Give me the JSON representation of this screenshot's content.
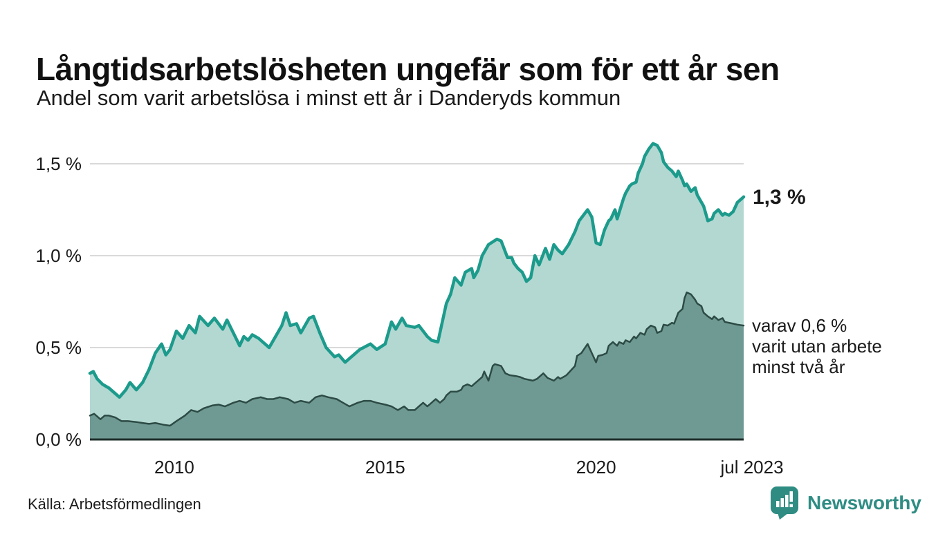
{
  "footer": {
    "source": "Källa: Arbetsförmedlingen",
    "logo_text": "Newsworthy"
  },
  "annotations": {
    "latest_value": "1,3 %",
    "secondary": "varav 0,6 %\nvarit utan arbete\nminst två år"
  },
  "colors": {
    "teal_line": "#1c9b8c",
    "light_fill": "#b3d8d2",
    "dark_line": "#2d4b45",
    "dark_fill": "#6f9a93",
    "gridline": "#d9d9d9",
    "baseline": "#1f2d2a",
    "text": "#1a1a1a",
    "brand_teal": "#2e8c83"
  },
  "chart_data": {
    "type": "area",
    "title": "Långtidsarbetslösheten ungefär som för ett år sen",
    "subtitle": "Andel som varit arbetslösa i minst ett år i Danderyds kommun",
    "grid": true,
    "legend": "none",
    "x_axis": {
      "xlim": [
        2008.0,
        2023.5
      ],
      "ticks": [
        {
          "label": "2010",
          "year": 2010,
          "dx": 0
        },
        {
          "label": "2015",
          "year": 2015,
          "dx": 0
        },
        {
          "label": "2020",
          "year": 2020,
          "dx": 0
        },
        {
          "label": "jul 2023",
          "year": 2023.5,
          "dx": 12
        }
      ]
    },
    "y_axis": {
      "unit": "%",
      "ylim": [
        0,
        1.65
      ],
      "ticks": [
        {
          "label": "0,0 %",
          "value": 0
        },
        {
          "label": "0,5 %",
          "value": 0.5
        },
        {
          "label": "1,0 %",
          "value": 1.0
        },
        {
          "label": "1,5 %",
          "value": 1.5
        }
      ]
    },
    "series": [
      {
        "name": "Arbetslösa minst ett år",
        "end_label": "1,3 %",
        "end_value": 1.3,
        "line_color": "#1c9b8c",
        "fill_color": "#b3d8d2",
        "line_width": 4.5,
        "points": [
          [
            2008.0,
            0.36
          ],
          [
            2008.08,
            0.37
          ],
          [
            2008.17,
            0.33
          ],
          [
            2008.3,
            0.3
          ],
          [
            2008.45,
            0.28
          ],
          [
            2008.6,
            0.25
          ],
          [
            2008.7,
            0.23
          ],
          [
            2008.85,
            0.27
          ],
          [
            2008.95,
            0.31
          ],
          [
            2009.1,
            0.27
          ],
          [
            2009.25,
            0.31
          ],
          [
            2009.4,
            0.38
          ],
          [
            2009.55,
            0.47
          ],
          [
            2009.7,
            0.52
          ],
          [
            2009.8,
            0.46
          ],
          [
            2009.9,
            0.49
          ],
          [
            2010.05,
            0.59
          ],
          [
            2010.2,
            0.55
          ],
          [
            2010.35,
            0.62
          ],
          [
            2010.5,
            0.58
          ],
          [
            2010.6,
            0.67
          ],
          [
            2010.8,
            0.62
          ],
          [
            2010.95,
            0.66
          ],
          [
            2011.15,
            0.6
          ],
          [
            2011.25,
            0.65
          ],
          [
            2011.4,
            0.58
          ],
          [
            2011.55,
            0.51
          ],
          [
            2011.65,
            0.56
          ],
          [
            2011.75,
            0.54
          ],
          [
            2011.85,
            0.57
          ],
          [
            2012.0,
            0.55
          ],
          [
            2012.15,
            0.52
          ],
          [
            2012.25,
            0.5
          ],
          [
            2012.4,
            0.56
          ],
          [
            2012.55,
            0.62
          ],
          [
            2012.65,
            0.69
          ],
          [
            2012.75,
            0.62
          ],
          [
            2012.9,
            0.63
          ],
          [
            2013.0,
            0.58
          ],
          [
            2013.2,
            0.66
          ],
          [
            2013.3,
            0.67
          ],
          [
            2013.45,
            0.58
          ],
          [
            2013.6,
            0.5
          ],
          [
            2013.8,
            0.45
          ],
          [
            2013.9,
            0.46
          ],
          [
            2014.05,
            0.42
          ],
          [
            2014.2,
            0.45
          ],
          [
            2014.4,
            0.49
          ],
          [
            2014.65,
            0.52
          ],
          [
            2014.8,
            0.49
          ],
          [
            2015.0,
            0.52
          ],
          [
            2015.15,
            0.64
          ],
          [
            2015.25,
            0.6
          ],
          [
            2015.4,
            0.66
          ],
          [
            2015.5,
            0.62
          ],
          [
            2015.7,
            0.61
          ],
          [
            2015.8,
            0.62
          ],
          [
            2016.0,
            0.56
          ],
          [
            2016.1,
            0.54
          ],
          [
            2016.25,
            0.53
          ],
          [
            2016.45,
            0.74
          ],
          [
            2016.55,
            0.79
          ],
          [
            2016.65,
            0.88
          ],
          [
            2016.8,
            0.84
          ],
          [
            2016.9,
            0.91
          ],
          [
            2017.05,
            0.93
          ],
          [
            2017.1,
            0.88
          ],
          [
            2017.2,
            0.92
          ],
          [
            2017.3,
            1.0
          ],
          [
            2017.45,
            1.06
          ],
          [
            2017.65,
            1.09
          ],
          [
            2017.75,
            1.08
          ],
          [
            2017.9,
            0.99
          ],
          [
            2018.0,
            0.99
          ],
          [
            2018.05,
            0.96
          ],
          [
            2018.15,
            0.93
          ],
          [
            2018.25,
            0.91
          ],
          [
            2018.35,
            0.86
          ],
          [
            2018.45,
            0.88
          ],
          [
            2018.55,
            1.0
          ],
          [
            2018.65,
            0.95
          ],
          [
            2018.7,
            0.98
          ],
          [
            2018.8,
            1.04
          ],
          [
            2018.9,
            0.98
          ],
          [
            2019.0,
            1.06
          ],
          [
            2019.1,
            1.03
          ],
          [
            2019.2,
            1.01
          ],
          [
            2019.35,
            1.06
          ],
          [
            2019.5,
            1.13
          ],
          [
            2019.6,
            1.19
          ],
          [
            2019.8,
            1.25
          ],
          [
            2019.9,
            1.21
          ],
          [
            2020.0,
            1.07
          ],
          [
            2020.1,
            1.06
          ],
          [
            2020.2,
            1.14
          ],
          [
            2020.3,
            1.19
          ],
          [
            2020.35,
            1.2
          ],
          [
            2020.45,
            1.25
          ],
          [
            2020.5,
            1.2
          ],
          [
            2020.65,
            1.31
          ],
          [
            2020.7,
            1.34
          ],
          [
            2020.8,
            1.38
          ],
          [
            2020.85,
            1.39
          ],
          [
            2020.95,
            1.4
          ],
          [
            2021.0,
            1.45
          ],
          [
            2021.1,
            1.5
          ],
          [
            2021.15,
            1.54
          ],
          [
            2021.25,
            1.58
          ],
          [
            2021.35,
            1.61
          ],
          [
            2021.45,
            1.6
          ],
          [
            2021.55,
            1.56
          ],
          [
            2021.6,
            1.51
          ],
          [
            2021.7,
            1.48
          ],
          [
            2021.8,
            1.46
          ],
          [
            2021.9,
            1.43
          ],
          [
            2021.95,
            1.46
          ],
          [
            2022.05,
            1.41
          ],
          [
            2022.1,
            1.38
          ],
          [
            2022.15,
            1.39
          ],
          [
            2022.25,
            1.35
          ],
          [
            2022.35,
            1.37
          ],
          [
            2022.4,
            1.33
          ],
          [
            2022.5,
            1.29
          ],
          [
            2022.55,
            1.27
          ],
          [
            2022.65,
            1.19
          ],
          [
            2022.75,
            1.2
          ],
          [
            2022.8,
            1.23
          ],
          [
            2022.9,
            1.25
          ],
          [
            2023.0,
            1.22
          ],
          [
            2023.05,
            1.23
          ],
          [
            2023.15,
            1.22
          ],
          [
            2023.25,
            1.24
          ],
          [
            2023.35,
            1.29
          ],
          [
            2023.5,
            1.32
          ]
        ]
      },
      {
        "name": "varav arbetslösa minst två år",
        "annotation": "varav 0,6 %\nvarit utan arbete\nminst två år",
        "end_value": 0.6,
        "line_color": "#2d4b45",
        "fill_color": "#6f9a93",
        "line_width": 2.5,
        "points": [
          [
            2008.0,
            0.13
          ],
          [
            2008.1,
            0.14
          ],
          [
            2008.25,
            0.11
          ],
          [
            2008.35,
            0.13
          ],
          [
            2008.45,
            0.13
          ],
          [
            2008.6,
            0.12
          ],
          [
            2008.75,
            0.1
          ],
          [
            2008.9,
            0.1
          ],
          [
            2009.1,
            0.095
          ],
          [
            2009.25,
            0.09
          ],
          [
            2009.4,
            0.085
          ],
          [
            2009.55,
            0.09
          ],
          [
            2009.75,
            0.08
          ],
          [
            2009.9,
            0.075
          ],
          [
            2010.05,
            0.1
          ],
          [
            2010.25,
            0.13
          ],
          [
            2010.4,
            0.16
          ],
          [
            2010.55,
            0.15
          ],
          [
            2010.7,
            0.17
          ],
          [
            2010.9,
            0.185
          ],
          [
            2011.05,
            0.19
          ],
          [
            2011.2,
            0.18
          ],
          [
            2011.4,
            0.2
          ],
          [
            2011.55,
            0.21
          ],
          [
            2011.7,
            0.2
          ],
          [
            2011.85,
            0.22
          ],
          [
            2012.05,
            0.23
          ],
          [
            2012.2,
            0.22
          ],
          [
            2012.35,
            0.22
          ],
          [
            2012.5,
            0.23
          ],
          [
            2012.7,
            0.22
          ],
          [
            2012.85,
            0.2
          ],
          [
            2013.0,
            0.21
          ],
          [
            2013.2,
            0.2
          ],
          [
            2013.35,
            0.23
          ],
          [
            2013.5,
            0.24
          ],
          [
            2013.65,
            0.23
          ],
          [
            2013.85,
            0.22
          ],
          [
            2014.0,
            0.2
          ],
          [
            2014.15,
            0.18
          ],
          [
            2014.35,
            0.2
          ],
          [
            2014.5,
            0.21
          ],
          [
            2014.65,
            0.21
          ],
          [
            2014.8,
            0.2
          ],
          [
            2015.0,
            0.19
          ],
          [
            2015.15,
            0.18
          ],
          [
            2015.3,
            0.16
          ],
          [
            2015.45,
            0.18
          ],
          [
            2015.55,
            0.16
          ],
          [
            2015.7,
            0.16
          ],
          [
            2015.8,
            0.18
          ],
          [
            2015.9,
            0.2
          ],
          [
            2016.0,
            0.18
          ],
          [
            2016.05,
            0.19
          ],
          [
            2016.15,
            0.21
          ],
          [
            2016.2,
            0.22
          ],
          [
            2016.3,
            0.2
          ],
          [
            2016.4,
            0.22
          ],
          [
            2016.45,
            0.24
          ],
          [
            2016.55,
            0.26
          ],
          [
            2016.7,
            0.26
          ],
          [
            2016.8,
            0.27
          ],
          [
            2016.85,
            0.29
          ],
          [
            2016.95,
            0.3
          ],
          [
            2017.05,
            0.29
          ],
          [
            2017.1,
            0.3
          ],
          [
            2017.2,
            0.32
          ],
          [
            2017.3,
            0.34
          ],
          [
            2017.35,
            0.37
          ],
          [
            2017.45,
            0.32
          ],
          [
            2017.55,
            0.4
          ],
          [
            2017.6,
            0.41
          ],
          [
            2017.75,
            0.4
          ],
          [
            2017.85,
            0.36
          ],
          [
            2017.95,
            0.35
          ],
          [
            2018.1,
            0.345
          ],
          [
            2018.2,
            0.34
          ],
          [
            2018.3,
            0.33
          ],
          [
            2018.4,
            0.325
          ],
          [
            2018.5,
            0.32
          ],
          [
            2018.6,
            0.33
          ],
          [
            2018.65,
            0.34
          ],
          [
            2018.75,
            0.36
          ],
          [
            2018.85,
            0.335
          ],
          [
            2019.0,
            0.32
          ],
          [
            2019.1,
            0.34
          ],
          [
            2019.15,
            0.33
          ],
          [
            2019.3,
            0.35
          ],
          [
            2019.5,
            0.4
          ],
          [
            2019.55,
            0.455
          ],
          [
            2019.65,
            0.47
          ],
          [
            2019.8,
            0.52
          ],
          [
            2019.9,
            0.47
          ],
          [
            2020.0,
            0.42
          ],
          [
            2020.05,
            0.455
          ],
          [
            2020.15,
            0.46
          ],
          [
            2020.25,
            0.47
          ],
          [
            2020.3,
            0.51
          ],
          [
            2020.4,
            0.53
          ],
          [
            2020.5,
            0.51
          ],
          [
            2020.55,
            0.53
          ],
          [
            2020.65,
            0.52
          ],
          [
            2020.7,
            0.54
          ],
          [
            2020.8,
            0.53
          ],
          [
            2020.9,
            0.56
          ],
          [
            2020.95,
            0.55
          ],
          [
            2021.05,
            0.58
          ],
          [
            2021.15,
            0.57
          ],
          [
            2021.2,
            0.6
          ],
          [
            2021.3,
            0.62
          ],
          [
            2021.4,
            0.61
          ],
          [
            2021.45,
            0.58
          ],
          [
            2021.55,
            0.59
          ],
          [
            2021.6,
            0.625
          ],
          [
            2021.7,
            0.62
          ],
          [
            2021.8,
            0.635
          ],
          [
            2021.85,
            0.63
          ],
          [
            2021.95,
            0.69
          ],
          [
            2022.05,
            0.71
          ],
          [
            2022.1,
            0.77
          ],
          [
            2022.15,
            0.8
          ],
          [
            2022.25,
            0.79
          ],
          [
            2022.35,
            0.76
          ],
          [
            2022.4,
            0.74
          ],
          [
            2022.5,
            0.725
          ],
          [
            2022.55,
            0.69
          ],
          [
            2022.65,
            0.67
          ],
          [
            2022.75,
            0.655
          ],
          [
            2022.8,
            0.67
          ],
          [
            2022.9,
            0.65
          ],
          [
            2023.0,
            0.66
          ],
          [
            2023.05,
            0.64
          ],
          [
            2023.15,
            0.635
          ],
          [
            2023.25,
            0.63
          ],
          [
            2023.35,
            0.625
          ],
          [
            2023.5,
            0.62
          ]
        ]
      }
    ]
  }
}
